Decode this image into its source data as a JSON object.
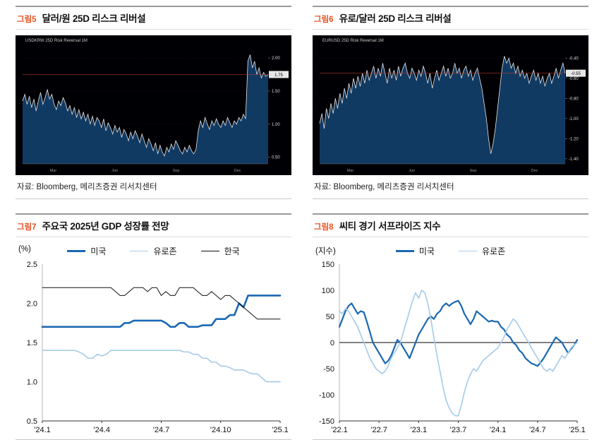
{
  "figures": [
    {
      "tag": "그림5",
      "title": "달러/원 25D 리스크 리버설",
      "source": "자료: Bloomberg, 메리츠증권 리서치센터"
    },
    {
      "tag": "그림6",
      "title": "유로/달러 25D 리스크 리버설",
      "source": "자료: Bloomberg, 메리츠증권 리서치센터"
    },
    {
      "tag": "그림7",
      "title": "주요국 2025년 GDP 성장률 전망"
    },
    {
      "tag": "그림8",
      "title": "씨티 경기 서프라이즈 지수"
    }
  ],
  "colors": {
    "accent_orange": "#e8501e",
    "us_blue": "#1a68b2",
    "euro_lightblue": "#a9cde9",
    "korea_black": "#111111",
    "bbg_background": "#000004",
    "bbg_fill": "#113a63"
  },
  "chart_data": [
    {
      "id": "bbg_usdkrw",
      "type": "area",
      "title": "달러/원 25D 리스크 리버설",
      "legend_lines": [
        "USDKRW 25D Risk Reversal 1M"
      ],
      "ylim": [
        0.4,
        2.15
      ],
      "right_labels": [
        "2.00",
        "1.50",
        "1.00",
        "0.50"
      ],
      "last_label": "1.75",
      "x_labels": [
        "Mar",
        "Jun",
        "Sep",
        "Dec"
      ],
      "fill_color": "#113a63",
      "values": [
        1.35,
        1.45,
        1.3,
        1.42,
        1.25,
        1.38,
        1.2,
        1.35,
        1.48,
        1.3,
        1.4,
        1.52,
        1.38,
        1.45,
        1.3,
        1.22,
        1.35,
        1.28,
        1.4,
        1.32,
        1.2,
        1.28,
        1.15,
        1.25,
        1.1,
        1.22,
        1.08,
        1.18,
        1.05,
        1.15,
        1.0,
        1.12,
        0.98,
        1.1,
        1.05,
        0.95,
        1.08,
        0.9,
        1.02,
        0.95,
        0.85,
        0.98,
        0.88,
        0.95,
        0.8,
        0.92,
        0.85,
        0.75,
        0.88,
        0.78,
        0.9,
        0.82,
        0.72,
        0.85,
        0.75,
        0.65,
        0.78,
        0.7,
        0.6,
        0.72,
        0.55,
        0.68,
        0.58,
        0.52,
        0.65,
        0.58,
        0.7,
        0.62,
        0.75,
        0.68,
        0.6,
        0.55,
        0.65,
        0.58,
        0.68,
        0.6,
        0.55,
        0.62,
        0.9,
        1.05,
        0.95,
        1.1,
        1.0,
        0.92,
        1.05,
        0.98,
        1.08,
        1.0,
        0.95,
        1.05,
        0.98,
        1.1,
        1.02,
        0.95,
        1.05,
        1.0,
        1.1,
        1.05,
        1.15,
        1.08,
        1.95,
        2.05,
        1.85,
        1.95,
        1.75,
        1.85,
        1.7,
        1.78,
        1.72,
        1.75
      ]
    },
    {
      "id": "bbg_eurusd",
      "type": "area",
      "title": "유로/달러 25D 리스크 리버설",
      "legend_lines": [
        "EURUSD 25D Risk Reversal 1M"
      ],
      "ylim": [
        -1.45,
        -0.3
      ],
      "right_labels": [
        "-0.40",
        "-0.60",
        "-0.80",
        "-1.00",
        "-1.20",
        "-1.40"
      ],
      "last_label": "-0.55",
      "x_labels": [
        "Mar",
        "Jun",
        "Sep",
        "Dec"
      ],
      "fill_color": "#113a63",
      "values": [
        -1.05,
        -0.95,
        -1.1,
        -0.9,
        -1.0,
        -0.85,
        -0.95,
        -0.8,
        -0.9,
        -0.75,
        -0.85,
        -0.7,
        -0.8,
        -0.65,
        -0.75,
        -0.6,
        -0.7,
        -0.58,
        -0.68,
        -0.55,
        -0.65,
        -0.52,
        -0.62,
        -0.55,
        -0.48,
        -0.6,
        -0.5,
        -0.58,
        -0.45,
        -0.55,
        -0.65,
        -0.5,
        -0.6,
        -0.52,
        -0.62,
        -0.48,
        -0.58,
        -0.5,
        -0.45,
        -0.55,
        -0.6,
        -0.5,
        -0.55,
        -0.62,
        -0.52,
        -0.58,
        -0.48,
        -0.55,
        -0.65,
        -0.55,
        -0.7,
        -0.6,
        -0.52,
        -0.62,
        -0.55,
        -0.48,
        -0.58,
        -0.5,
        -0.6,
        -0.55,
        -0.45,
        -0.55,
        -0.5,
        -0.6,
        -0.52,
        -0.48,
        -0.58,
        -0.52,
        -0.62,
        -0.55,
        -0.5,
        -0.6,
        -0.7,
        -0.85,
        -1.0,
        -1.2,
        -1.35,
        -1.25,
        -1.1,
        -0.9,
        -0.7,
        -0.5,
        -0.38,
        -0.45,
        -0.4,
        -0.5,
        -0.45,
        -0.55,
        -0.48,
        -0.58,
        -0.52,
        -0.6,
        -0.55,
        -0.65,
        -0.58,
        -0.52,
        -0.62,
        -0.55,
        -0.65,
        -0.58,
        -0.68,
        -0.6,
        -0.55,
        -0.65,
        -0.58,
        -0.5,
        -0.6,
        -0.52,
        -0.45,
        -0.55
      ]
    },
    {
      "id": "gdp2025",
      "type": "line",
      "title": "주요국 2025년 GDP 성장률 전망",
      "unit": "(%)",
      "ylim": [
        0.5,
        2.5
      ],
      "yticks": [
        "0.5",
        "1.0",
        "1.5",
        "2.0",
        "2.5"
      ],
      "x_tick_labels": [
        "'24.1",
        "'24.4",
        "'24.7",
        "'24.10",
        "'25.1"
      ],
      "zero_line": false,
      "series": [
        {
          "name": "미국",
          "color": "#1a68b2",
          "width": 2.6,
          "values": [
            1.7,
            1.7,
            1.7,
            1.7,
            1.7,
            1.7,
            1.7,
            1.7,
            1.7,
            1.7,
            1.7,
            1.7,
            1.7,
            1.7,
            1.7,
            1.7,
            1.7,
            1.7,
            1.75,
            1.75,
            1.78,
            1.78,
            1.78,
            1.78,
            1.78,
            1.78,
            1.78,
            1.75,
            1.7,
            1.7,
            1.75,
            1.75,
            1.7,
            1.7,
            1.7,
            1.72,
            1.72,
            1.72,
            1.8,
            1.8,
            1.8,
            1.85,
            1.85,
            2.0,
            1.95,
            2.1,
            2.1,
            2.1,
            2.1,
            2.1,
            2.1,
            2.1,
            2.1
          ]
        },
        {
          "name": "유로존",
          "color": "#a9cde9",
          "width": 1.7,
          "values": [
            1.4,
            1.4,
            1.4,
            1.4,
            1.4,
            1.4,
            1.4,
            1.4,
            1.38,
            1.35,
            1.3,
            1.3,
            1.35,
            1.33,
            1.35,
            1.4,
            1.4,
            1.4,
            1.4,
            1.4,
            1.4,
            1.4,
            1.4,
            1.4,
            1.4,
            1.4,
            1.4,
            1.4,
            1.4,
            1.4,
            1.4,
            1.38,
            1.38,
            1.35,
            1.35,
            1.3,
            1.3,
            1.25,
            1.25,
            1.2,
            1.2,
            1.18,
            1.15,
            1.15,
            1.15,
            1.12,
            1.1,
            1.1,
            1.05,
            1.0,
            1.0,
            1.0,
            1.0
          ]
        },
        {
          "name": "한국",
          "color": "#111111",
          "width": 1,
          "values": [
            2.2,
            2.2,
            2.2,
            2.2,
            2.2,
            2.2,
            2.2,
            2.2,
            2.2,
            2.2,
            2.2,
            2.2,
            2.2,
            2.2,
            2.2,
            2.2,
            2.15,
            2.1,
            2.1,
            2.15,
            2.2,
            2.2,
            2.2,
            2.15,
            2.2,
            2.2,
            2.1,
            2.15,
            2.1,
            2.1,
            2.2,
            2.2,
            2.2,
            2.2,
            2.15,
            2.1,
            2.1,
            2.15,
            2.1,
            2.05,
            2.1,
            2.1,
            2.05,
            2.0,
            1.95,
            1.9,
            1.85,
            1.8,
            1.8,
            1.8,
            1.8,
            1.8,
            1.8
          ]
        }
      ]
    },
    {
      "id": "cesi",
      "type": "line",
      "title": "씨티 경기 서프라이즈 지수",
      "unit": "(지수)",
      "ylim": [
        -150,
        150
      ],
      "yticks": [
        "-150",
        "-100",
        "-50",
        "0",
        "50",
        "100",
        "150"
      ],
      "x_tick_labels": [
        "'22.1",
        "'22.7",
        "'23.1",
        "'23.7",
        "'24.1",
        "'24.7",
        "'25.1"
      ],
      "zero_line": true,
      "series": [
        {
          "name": "미국",
          "color": "#1a68b2",
          "width": 2.2,
          "values": [
            30,
            45,
            60,
            70,
            75,
            65,
            55,
            60,
            58,
            40,
            20,
            0,
            -10,
            -20,
            -30,
            -40,
            -35,
            -25,
            -10,
            5,
            0,
            -10,
            -20,
            -30,
            -15,
            0,
            15,
            25,
            35,
            45,
            50,
            45,
            55,
            60,
            70,
            75,
            70,
            75,
            78,
            80,
            70,
            55,
            45,
            35,
            45,
            60,
            55,
            50,
            45,
            40,
            42,
            40,
            40,
            30,
            25,
            15,
            10,
            0,
            -5,
            -15,
            -20,
            -30,
            -35,
            -40,
            -42,
            -45,
            -38,
            -30,
            -20,
            -10,
            0,
            10,
            5,
            0,
            -10,
            -20,
            -12,
            -5,
            5
          ]
        },
        {
          "name": "유로존",
          "color": "#a9cde9",
          "width": 1.7,
          "values": [
            60,
            55,
            65,
            60,
            50,
            40,
            30,
            15,
            0,
            -15,
            -30,
            -40,
            -50,
            -55,
            -60,
            -55,
            -45,
            -30,
            -20,
            -10,
            0,
            20,
            40,
            60,
            80,
            95,
            85,
            100,
            95,
            75,
            45,
            10,
            -25,
            -55,
            -85,
            -110,
            -125,
            -135,
            -140,
            -140,
            -120,
            -95,
            -75,
            -60,
            -50,
            -55,
            -45,
            -35,
            -30,
            -25,
            -20,
            -15,
            -10,
            0,
            10,
            25,
            35,
            45,
            40,
            30,
            20,
            10,
            0,
            -10,
            -20,
            -30,
            -40,
            -50,
            -55,
            -50,
            -55,
            -45,
            -35,
            -25,
            -30,
            -20,
            -10,
            -5,
            0
          ]
        }
      ]
    }
  ]
}
